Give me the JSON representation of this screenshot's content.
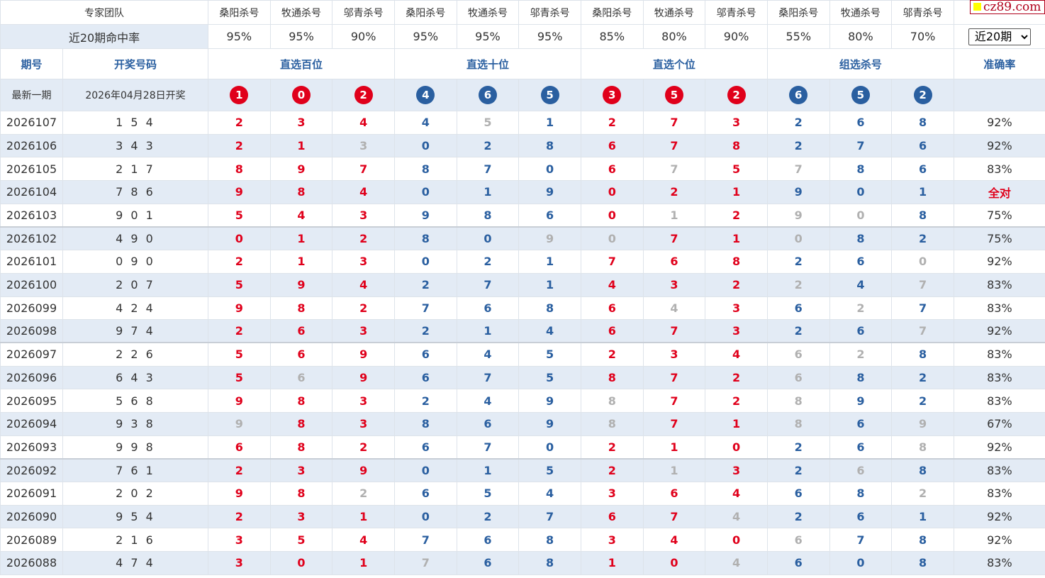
{
  "header": {
    "team_label": "专家团队",
    "experts": [
      "桑阳杀号",
      "牧通杀号",
      "邬青杀号",
      "桑阳杀号",
      "牧通杀号",
      "邬青杀号",
      "桑阳杀号",
      "牧通杀号",
      "邬青杀号",
      "桑阳杀号",
      "牧通杀号",
      "邬青杀号"
    ],
    "hit_rate_label": "近20期命中率",
    "hit_rates": [
      "95%",
      "95%",
      "90%",
      "95%",
      "95%",
      "95%",
      "85%",
      "80%",
      "90%",
      "55%",
      "80%",
      "70%"
    ],
    "period_select": "近20期"
  },
  "columns": {
    "issue": "期号",
    "draw": "开奖号码",
    "groups": [
      "直选百位",
      "直选十位",
      "直选个位",
      "组选杀号"
    ],
    "accuracy": "准确率"
  },
  "latest": {
    "label": "最新一期",
    "date": "2026年04月28日开奖",
    "balls": [
      "1",
      "0",
      "2",
      "4",
      "6",
      "5",
      "3",
      "5",
      "2",
      "6",
      "5",
      "2"
    ]
  },
  "colors": {
    "red": "#e0001b",
    "blue": "#2a5fa0",
    "gray": "#b0b0b0",
    "shade": "#e3ebf5"
  },
  "logo": "cz89.com",
  "rows": [
    {
      "issue": "2026107",
      "draw": "154",
      "kills": [
        "2",
        "3",
        "4",
        "4",
        "5",
        "1",
        "2",
        "7",
        "3",
        "2",
        "6",
        "8"
      ],
      "acc": "92%"
    },
    {
      "issue": "2026106",
      "draw": "343",
      "kills": [
        "2",
        "1",
        "3",
        "0",
        "2",
        "8",
        "6",
        "7",
        "8",
        "2",
        "7",
        "6"
      ],
      "acc": "92%"
    },
    {
      "issue": "2026105",
      "draw": "217",
      "kills": [
        "8",
        "9",
        "7",
        "8",
        "7",
        "0",
        "6",
        "7",
        "5",
        "7",
        "8",
        "6"
      ],
      "acc": "83%"
    },
    {
      "issue": "2026104",
      "draw": "786",
      "kills": [
        "9",
        "8",
        "4",
        "0",
        "1",
        "9",
        "0",
        "2",
        "1",
        "9",
        "0",
        "1"
      ],
      "acc": "全对"
    },
    {
      "issue": "2026103",
      "draw": "901",
      "kills": [
        "5",
        "4",
        "3",
        "9",
        "8",
        "6",
        "0",
        "1",
        "2",
        "9",
        "0",
        "8"
      ],
      "acc": "75%"
    },
    {
      "issue": "2026102",
      "draw": "490",
      "kills": [
        "0",
        "1",
        "2",
        "8",
        "0",
        "9",
        "0",
        "7",
        "1",
        "0",
        "8",
        "2"
      ],
      "acc": "75%"
    },
    {
      "issue": "2026101",
      "draw": "090",
      "kills": [
        "2",
        "1",
        "3",
        "0",
        "2",
        "1",
        "7",
        "6",
        "8",
        "2",
        "6",
        "0"
      ],
      "acc": "92%"
    },
    {
      "issue": "2026100",
      "draw": "207",
      "kills": [
        "5",
        "9",
        "4",
        "2",
        "7",
        "1",
        "4",
        "3",
        "2",
        "2",
        "4",
        "7"
      ],
      "acc": "83%"
    },
    {
      "issue": "2026099",
      "draw": "424",
      "kills": [
        "9",
        "8",
        "2",
        "7",
        "6",
        "8",
        "6",
        "4",
        "3",
        "6",
        "2",
        "7"
      ],
      "acc": "83%"
    },
    {
      "issue": "2026098",
      "draw": "974",
      "kills": [
        "2",
        "6",
        "3",
        "2",
        "1",
        "4",
        "6",
        "7",
        "3",
        "2",
        "6",
        "7"
      ],
      "acc": "92%"
    },
    {
      "issue": "2026097",
      "draw": "226",
      "kills": [
        "5",
        "6",
        "9",
        "6",
        "4",
        "5",
        "2",
        "3",
        "4",
        "6",
        "2",
        "8"
      ],
      "acc": "83%"
    },
    {
      "issue": "2026096",
      "draw": "643",
      "kills": [
        "5",
        "6",
        "9",
        "6",
        "7",
        "5",
        "8",
        "7",
        "2",
        "6",
        "8",
        "2"
      ],
      "acc": "83%"
    },
    {
      "issue": "2026095",
      "draw": "568",
      "kills": [
        "9",
        "8",
        "3",
        "2",
        "4",
        "9",
        "8",
        "7",
        "2",
        "8",
        "9",
        "2"
      ],
      "acc": "83%"
    },
    {
      "issue": "2026094",
      "draw": "938",
      "kills": [
        "9",
        "8",
        "3",
        "8",
        "6",
        "9",
        "8",
        "7",
        "1",
        "8",
        "6",
        "9"
      ],
      "acc": "67%"
    },
    {
      "issue": "2026093",
      "draw": "998",
      "kills": [
        "6",
        "8",
        "2",
        "6",
        "7",
        "0",
        "2",
        "1",
        "0",
        "2",
        "6",
        "8"
      ],
      "acc": "92%"
    },
    {
      "issue": "2026092",
      "draw": "761",
      "kills": [
        "2",
        "3",
        "9",
        "0",
        "1",
        "5",
        "2",
        "1",
        "3",
        "2",
        "6",
        "8"
      ],
      "acc": "83%"
    },
    {
      "issue": "2026091",
      "draw": "202",
      "kills": [
        "9",
        "8",
        "2",
        "6",
        "5",
        "4",
        "3",
        "6",
        "4",
        "6",
        "8",
        "2"
      ],
      "acc": "83%"
    },
    {
      "issue": "2026090",
      "draw": "954",
      "kills": [
        "2",
        "3",
        "1",
        "0",
        "2",
        "7",
        "6",
        "7",
        "4",
        "2",
        "6",
        "1"
      ],
      "acc": "92%"
    },
    {
      "issue": "2026089",
      "draw": "216",
      "kills": [
        "3",
        "5",
        "4",
        "7",
        "6",
        "8",
        "3",
        "4",
        "0",
        "6",
        "7",
        "8"
      ],
      "acc": "92%"
    },
    {
      "issue": "2026088",
      "draw": "474",
      "kills": [
        "3",
        "0",
        "1",
        "7",
        "6",
        "8",
        "1",
        "0",
        "4",
        "6",
        "0",
        "8"
      ],
      "acc": "83%"
    }
  ]
}
